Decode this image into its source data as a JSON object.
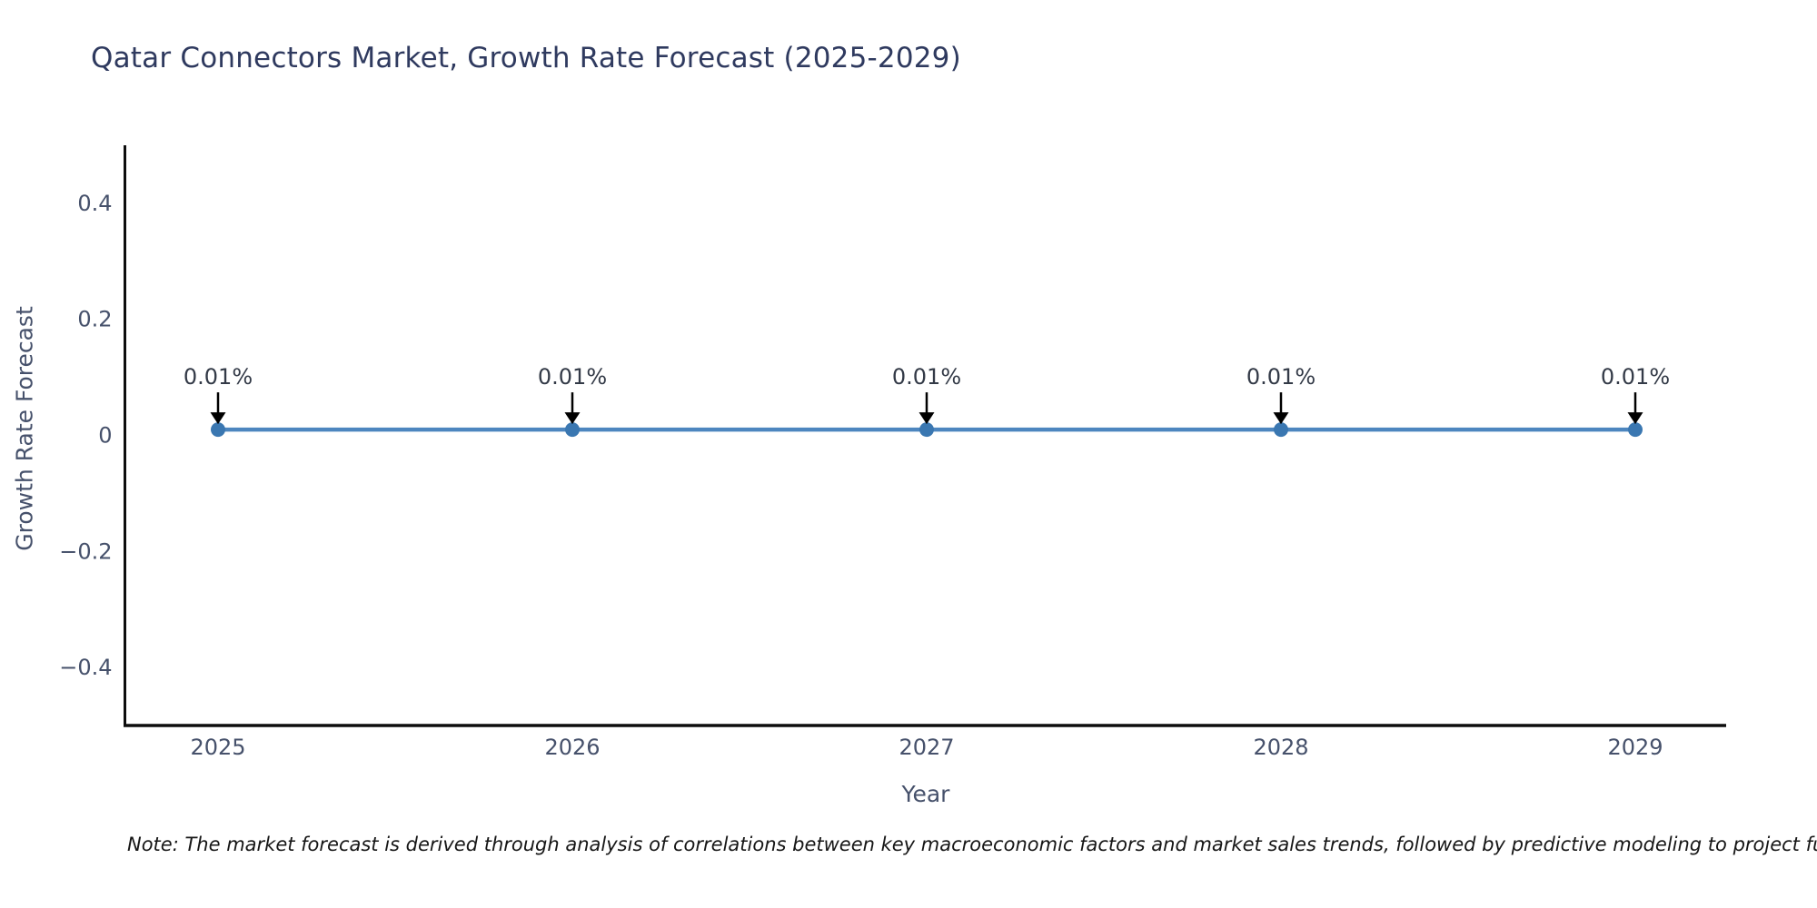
{
  "chart_data": {
    "type": "line",
    "title": "Qatar Connectors Market, Growth Rate Forecast (2025-2029)",
    "xlabel": "Year",
    "ylabel": "Growth Rate Forecast",
    "x": [
      2025,
      2026,
      2027,
      2028,
      2029
    ],
    "series": [
      {
        "name": "Growth Rate Forecast",
        "values": [
          0.01,
          0.01,
          0.01,
          0.01,
          0.01
        ]
      }
    ],
    "annotations": [
      "0.01%",
      "0.01%",
      "0.01%",
      "0.01%",
      "0.01%"
    ],
    "ylim": [
      -0.5,
      0.5
    ],
    "yticks": [
      0.4,
      0.2,
      0,
      -0.2,
      -0.4
    ],
    "ytick_labels": [
      "0.4",
      "0.2",
      "0",
      "−0.2",
      "−0.4"
    ],
    "grid": false,
    "legend": false,
    "colors": {
      "line": "#4d86bf",
      "marker": "#3a77b1",
      "spine": "#0d0d0d",
      "tick_text": "#46516b",
      "title_text": "#2f3a5f",
      "annotation_text": "#333a47",
      "arrow": "#000000"
    }
  },
  "note": {
    "text": "Note: The market forecast is derived through analysis of correlations between key macroeconomic factors and market sales trends, followed by predictive modeling to project future sales"
  }
}
